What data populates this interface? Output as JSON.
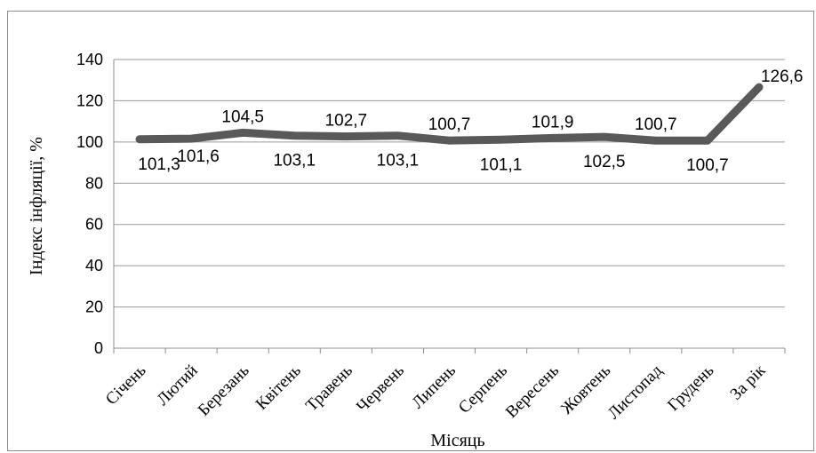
{
  "chart_data": {
    "type": "line",
    "categories": [
      "Січень",
      "Лютий",
      "Березань",
      "Квітень",
      "Травень",
      "Червень",
      "Липень",
      "Серпень",
      "Вересень",
      "Жовтень",
      "Листопад",
      "Грудень",
      "За рік"
    ],
    "series": [
      {
        "values": [
          101.3,
          101.6,
          104.5,
          103.1,
          102.7,
          103.1,
          100.7,
          101.1,
          101.9,
          102.5,
          100.7,
          100.7,
          126.6
        ],
        "labels": [
          "101,3",
          "101,6",
          "104,5",
          "103,1",
          "102,7",
          "103,1",
          "100,7",
          "101,1",
          "101,9",
          "102,5",
          "100,7",
          "100,7",
          "126,6"
        ],
        "color": "#595959"
      }
    ],
    "xlabel": "Місяць",
    "ylabel": "Індекс інфляції, %",
    "ylim": [
      0,
      140
    ],
    "yticks": [
      "0",
      "20",
      "40",
      "60",
      "80",
      "100",
      "120",
      "140"
    ],
    "grid": true,
    "legend": "none"
  }
}
